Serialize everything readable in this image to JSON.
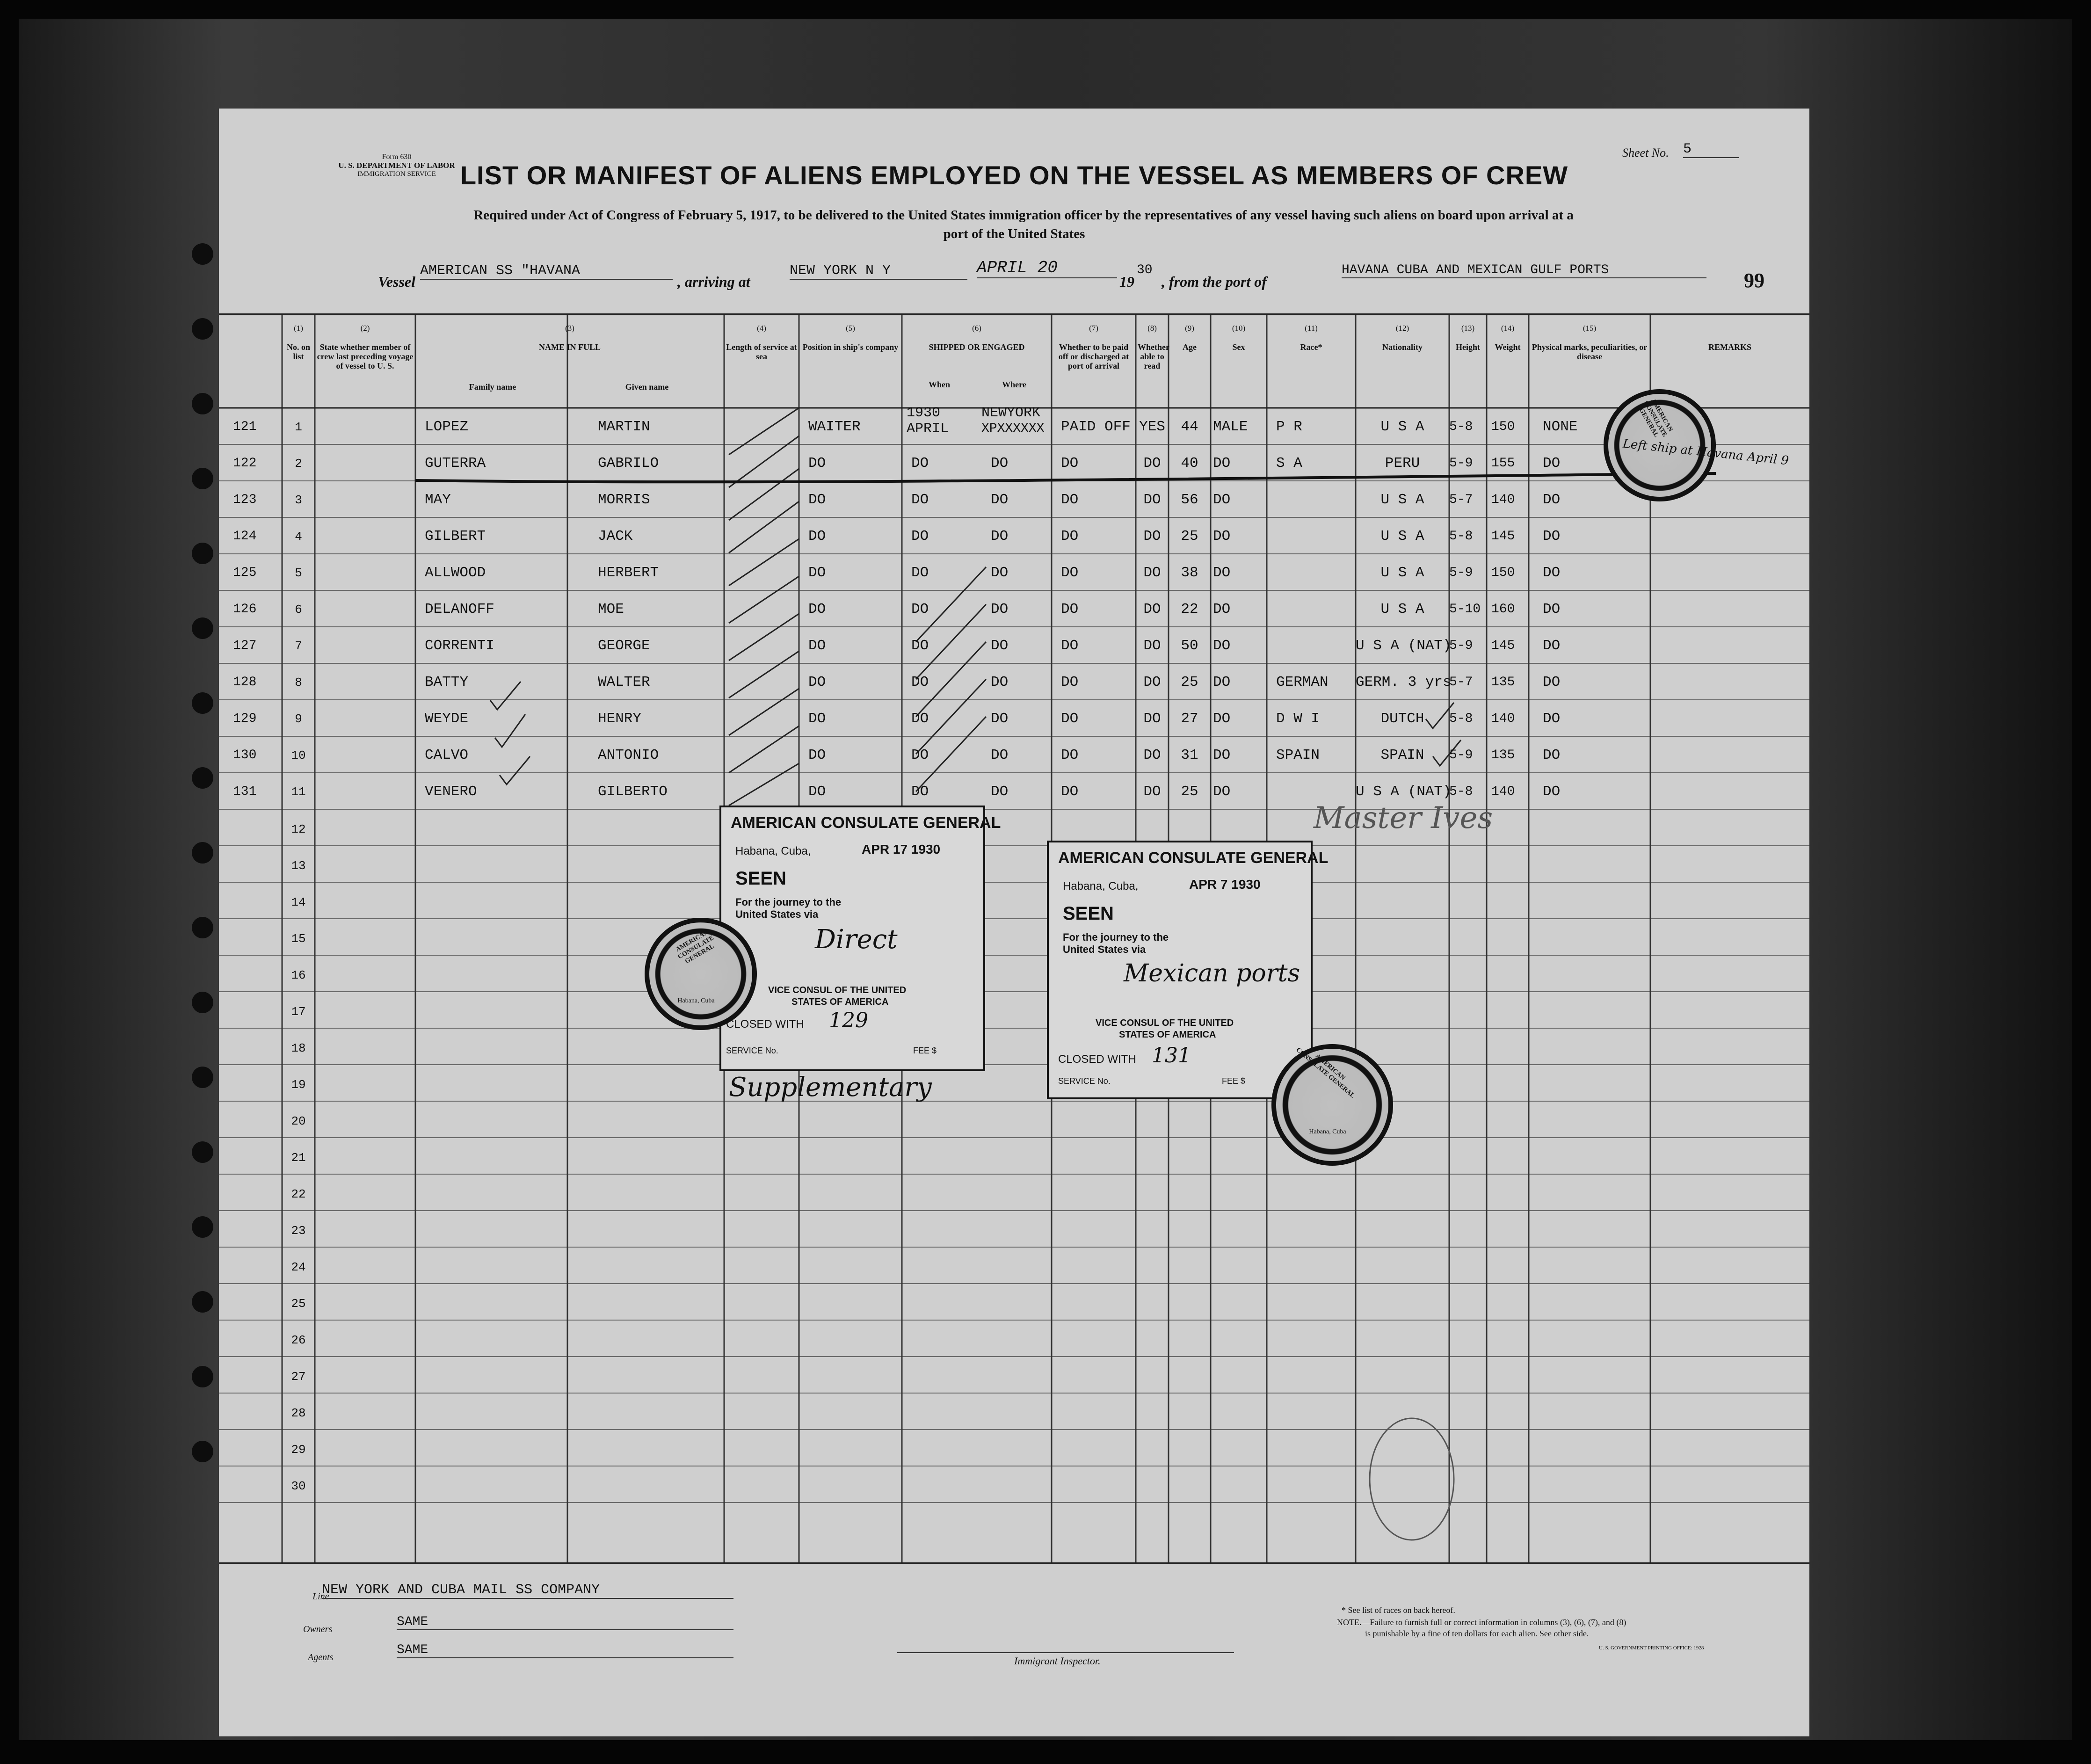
{
  "header": {
    "form_number": "Form 630",
    "dept_line1": "U. S. DEPARTMENT OF LABOR",
    "dept_line2": "IMMIGRATION SERVICE",
    "title": "LIST OR MANIFEST OF ALIENS EMPLOYED ON THE VESSEL AS MEMBERS OF CREW",
    "subtitle_line1": "Required under Act of Congress of February 5, 1917, to be delivered to the United States immigration officer by the representatives of any vessel having such aliens on board upon arrival at a",
    "subtitle_line2": "port of the United States",
    "sheet_label": "Sheet No.",
    "sheet_value": "5",
    "vessel_label": "Vessel",
    "vessel_value": "AMERICAN SS \"HAVANA",
    "arriving_label": ", arriving at",
    "arriving_value": "NEW YORK N Y",
    "date_value": "APRIL 20",
    "year_prefix": "19",
    "year_value": "30",
    "from_label": ", from the port of",
    "from_value": "HAVANA CUBA AND MEXICAN GULF PORTS",
    "page_number": "99"
  },
  "columns": {
    "c1": {
      "num": "(1)",
      "label": "No. on list"
    },
    "c2": {
      "num": "(2)",
      "label": "State whether member of crew last preceding voyage of vessel to U. S."
    },
    "c3": {
      "num": "(3)",
      "label": "NAME IN FULL",
      "family": "Family name",
      "given": "Given name"
    },
    "c4": {
      "num": "(4)",
      "label": "Length of service at sea"
    },
    "c5": {
      "num": "(5)",
      "label": "Position in ship's company"
    },
    "c6": {
      "num": "(6)",
      "label": "SHIPPED OR ENGAGED",
      "when": "When",
      "where": "Where"
    },
    "c7": {
      "num": "(7)",
      "label": "Whether to be paid off or discharged at port of arrival"
    },
    "c8": {
      "num": "(8)",
      "label": "Whether able to read"
    },
    "c9": {
      "num": "(9)",
      "label": "Age"
    },
    "c10": {
      "num": "(10)",
      "label": "Sex"
    },
    "c11": {
      "num": "(11)",
      "label": "Race*"
    },
    "c12": {
      "num": "(12)",
      "label": "Nationality"
    },
    "c13": {
      "num": "(13)",
      "label": "Height"
    },
    "c14": {
      "num": "(14)",
      "label": "Weight"
    },
    "c15": {
      "num": "(15)",
      "label": "Physical marks, peculiarities, or disease"
    },
    "c16": {
      "num": "",
      "label": "REMARKS"
    }
  },
  "rows": [
    {
      "seq": "121",
      "no": "1",
      "family": "LOPEZ",
      "given": "MARTIN",
      "position": "WAITER",
      "when": "1930 APRIL",
      "where": "NEWYORK",
      "where2": "XPXXXXXX",
      "paid": "PAID OFF",
      "read": "YES",
      "age": "44",
      "sex": "MALE",
      "race": "P R",
      "nationality": "U S A",
      "height": "5-8",
      "weight": "150",
      "marks": "NONE"
    },
    {
      "seq": "122",
      "no": "2",
      "family": "GUTERRA",
      "given": "GABRILO",
      "position": "DO",
      "when": "DO",
      "where": "DO",
      "paid": "DO",
      "read": "DO",
      "age": "40",
      "sex": "DO",
      "race": "S A",
      "nationality": "PERU",
      "height": "5-9",
      "weight": "155",
      "marks": "DO"
    },
    {
      "seq": "123",
      "no": "3",
      "family": "MAY",
      "given": "MORRIS",
      "position": "DO",
      "when": "DO",
      "where": "DO",
      "paid": "DO",
      "read": "DO",
      "age": "56",
      "sex": "DO",
      "race": "",
      "nationality": "U S A",
      "height": "5-7",
      "weight": "140",
      "marks": "DO"
    },
    {
      "seq": "124",
      "no": "4",
      "family": "GILBERT",
      "given": "JACK",
      "position": "DO",
      "when": "DO",
      "where": "DO",
      "paid": "DO",
      "read": "DO",
      "age": "25",
      "sex": "DO",
      "race": "",
      "nationality": "U S A",
      "height": "5-8",
      "weight": "145",
      "marks": "DO"
    },
    {
      "seq": "125",
      "no": "5",
      "family": "ALLWOOD",
      "given": "HERBERT",
      "position": "DO",
      "when": "DO",
      "where": "DO",
      "paid": "DO",
      "read": "DO",
      "age": "38",
      "sex": "DO",
      "race": "",
      "nationality": "U S A",
      "height": "5-9",
      "weight": "150",
      "marks": "DO"
    },
    {
      "seq": "126",
      "no": "6",
      "family": "DELANOFF",
      "given": "MOE",
      "position": "DO",
      "when": "DO",
      "where": "DO",
      "paid": "DO",
      "read": "DO",
      "age": "22",
      "sex": "DO",
      "race": "",
      "nationality": "U S A",
      "height": "5-10",
      "weight": "160",
      "marks": "DO"
    },
    {
      "seq": "127",
      "no": "7",
      "family": "CORRENTI",
      "given": "GEORGE",
      "position": "DO",
      "when": "DO",
      "where": "DO",
      "paid": "DO",
      "read": "DO",
      "age": "50",
      "sex": "DO",
      "race": "",
      "nationality": "U S A (NAT)",
      "height": "5-9",
      "weight": "145",
      "marks": "DO"
    },
    {
      "seq": "128",
      "no": "8",
      "family": "BATTY",
      "given": "WALTER",
      "position": "DO",
      "when": "DO",
      "where": "DO",
      "paid": "DO",
      "read": "DO",
      "age": "25",
      "sex": "DO",
      "race": "GERMAN",
      "nationality": "GERM. 3 yrs",
      "height": "5-7",
      "weight": "135",
      "marks": "DO"
    },
    {
      "seq": "129",
      "no": "9",
      "family": "WEYDE",
      "given": "HENRY",
      "position": "DO",
      "when": "DO",
      "where": "DO",
      "paid": "DO",
      "read": "DO",
      "age": "27",
      "sex": "DO",
      "race": "D W I",
      "nationality": "DUTCH",
      "height": "5-8",
      "weight": "140",
      "marks": "DO"
    },
    {
      "seq": "130",
      "no": "10",
      "family": "CALVO",
      "given": "ANTONIO",
      "position": "DO",
      "when": "DO",
      "where": "DO",
      "paid": "DO",
      "read": "DO",
      "age": "31",
      "sex": "DO",
      "race": "SPAIN",
      "nationality": "SPAIN",
      "height": "5-9",
      "weight": "135",
      "marks": "DO"
    },
    {
      "seq": "131",
      "no": "11",
      "family": "VENERO",
      "given": "GILBERTO",
      "position": "DO",
      "when": "DO",
      "where": "DO",
      "paid": "DO",
      "read": "DO",
      "age": "25",
      "sex": "DO",
      "race": "",
      "nationality": "U S A (NAT)",
      "height": "5-8",
      "weight": "140",
      "marks": "DO"
    }
  ],
  "empty_row_numbers": [
    "12",
    "13",
    "14",
    "15",
    "16",
    "17",
    "18",
    "19",
    "20",
    "21",
    "22",
    "23",
    "24",
    "25",
    "26",
    "27",
    "28",
    "29",
    "30"
  ],
  "stamp1": {
    "title": "AMERICAN CONSULATE GENERAL",
    "place": "Habana, Cuba,",
    "date": "APR 17 1930",
    "seen": "SEEN",
    "journey": "For the journey to the United States via",
    "via": "Direct",
    "consul1": "VICE CONSUL OF THE UNITED",
    "consul2": "STATES OF AMERICA",
    "closed_label": "CLOSED WITH",
    "closed_value": "129",
    "service": "SERVICE No.",
    "fee": "FEE $",
    "note": "Supplementary"
  },
  "stamp2": {
    "title": "AMERICAN CONSULATE GENERAL",
    "place": "Habana, Cuba,",
    "date": "APR 7 1930",
    "seen": "SEEN",
    "journey": "For the journey to the United States via",
    "via": "Mexican ports",
    "consul1": "VICE CONSUL OF THE UNITED",
    "consul2": "STATES OF AMERICA",
    "closed_label": "CLOSED WITH",
    "closed_value": "131",
    "service": "SERVICE No.",
    "fee": "FEE $"
  },
  "seal_text": "AMERICAN CONSULATE GENERAL",
  "seal_place": "Habana, Cuba",
  "annotations": {
    "master": "Master Ives",
    "remark_122": "Left ship at Havana April 9"
  },
  "footer": {
    "line_label": "Line",
    "line_value": "NEW YORK AND CUBA MAIL SS COMPANY",
    "owners_label": "Owners",
    "owners_value": "SAME",
    "agents_label": "Agents",
    "agents_value": "SAME",
    "inspector_label": "Immigrant Inspector.",
    "note1": "* See list of races on back hereof.",
    "note2": "NOTE.—Failure to furnish full or correct information in columns (3), (6), (7), and (8)",
    "note3": "is punishable by a fine of ten dollars for each alien. See other side.",
    "printing": "U. S. GOVERNMENT PRINTING OFFICE: 1928"
  }
}
